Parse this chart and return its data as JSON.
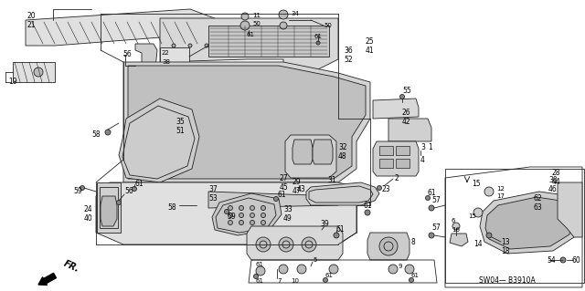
{
  "bg_color": "#ffffff",
  "line_color": "#222222",
  "diagram_code": "SW04— B3910A",
  "figsize": [
    6.4,
    3.19
  ],
  "dpi": 100
}
